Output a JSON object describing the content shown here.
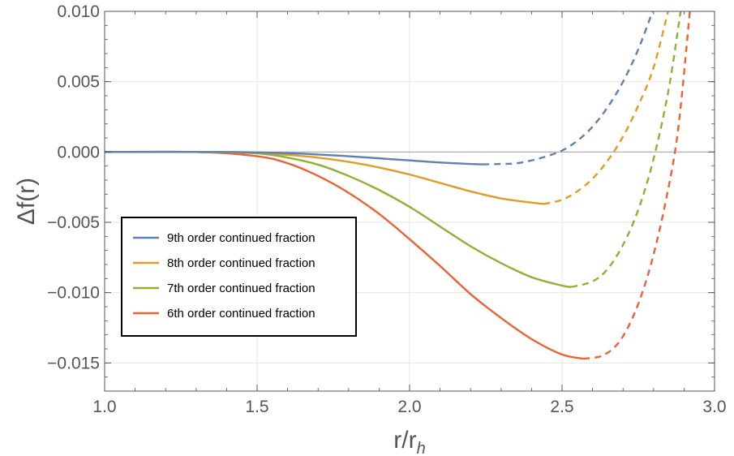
{
  "chart_data": {
    "type": "line",
    "xlabel": "r/r",
    "xlabel_sub": "h",
    "ylabel": "Δf(r)",
    "xlim": [
      1.0,
      3.0
    ],
    "ylim": [
      -0.017,
      0.01
    ],
    "xticks": [
      1.0,
      1.5,
      2.0,
      2.5,
      3.0
    ],
    "xtick_labels": [
      "1.0",
      "1.5",
      "2.0",
      "2.5",
      "3.0"
    ],
    "yticks": [
      0.01,
      0.005,
      0.0,
      -0.005,
      -0.01,
      -0.015
    ],
    "ytick_labels": [
      "0.010",
      "0.005",
      "0.000",
      "−0.005",
      "−0.010",
      "−0.015"
    ],
    "grid": true,
    "legend_position": "lower-left",
    "series": [
      {
        "name": "9th order continued fraction",
        "color": "#5e81b5",
        "solid": {
          "x": [
            1.0,
            1.2,
            1.4,
            1.5,
            1.6,
            1.7,
            1.8,
            1.9,
            2.0,
            2.1,
            2.2,
            2.24
          ],
          "y": [
            0.0,
            0.0,
            0.0,
            -3e-05,
            -8e-05,
            -0.00018,
            -0.0003,
            -0.00045,
            -0.0006,
            -0.00075,
            -0.00085,
            -0.00088
          ]
        },
        "dashed": {
          "x": [
            2.24,
            2.3,
            2.35,
            2.4,
            2.45,
            2.5,
            2.55,
            2.6,
            2.65,
            2.7,
            2.75,
            2.8
          ],
          "y": [
            -0.00088,
            -0.00085,
            -0.0008,
            -0.0006,
            -0.0003,
            0.0001,
            0.0008,
            0.0018,
            0.0032,
            0.005,
            0.0073,
            0.0102
          ]
        }
      },
      {
        "name": "8th order continued fraction",
        "color": "#e19c24",
        "solid": {
          "x": [
            1.0,
            1.3,
            1.5,
            1.6,
            1.7,
            1.8,
            1.9,
            2.0,
            2.1,
            2.2,
            2.3,
            2.4,
            2.44
          ],
          "y": [
            0.0,
            0.0,
            -5e-05,
            -0.0002,
            -0.0004,
            -0.0007,
            -0.0011,
            -0.0016,
            -0.0022,
            -0.0028,
            -0.0033,
            -0.0036,
            -0.0037
          ]
        },
        "dashed": {
          "x": [
            2.44,
            2.5,
            2.55,
            2.6,
            2.65,
            2.7,
            2.75,
            2.8,
            2.85
          ],
          "y": [
            -0.0037,
            -0.0034,
            -0.0028,
            -0.0019,
            -0.0006,
            0.0011,
            0.0033,
            0.006,
            0.0102
          ]
        }
      },
      {
        "name": "7th order continued fraction",
        "color": "#8fb032",
        "solid": {
          "x": [
            1.0,
            1.3,
            1.5,
            1.6,
            1.7,
            1.8,
            1.9,
            2.0,
            2.1,
            2.2,
            2.3,
            2.4,
            2.5,
            2.53
          ],
          "y": [
            0.0,
            0.0,
            -0.0001,
            -0.0004,
            -0.0009,
            -0.0017,
            -0.0027,
            -0.0039,
            -0.0053,
            -0.0067,
            -0.0079,
            -0.0089,
            -0.0095,
            -0.0096
          ]
        },
        "dashed": {
          "x": [
            2.53,
            2.6,
            2.65,
            2.7,
            2.75,
            2.8,
            2.85,
            2.89
          ],
          "y": [
            -0.0096,
            -0.0092,
            -0.0083,
            -0.0066,
            -0.0041,
            -0.0005,
            0.0045,
            0.0102
          ]
        }
      },
      {
        "name": "6th order continued fraction",
        "color": "#eb6235",
        "solid": {
          "x": [
            1.0,
            1.3,
            1.5,
            1.6,
            1.7,
            1.8,
            1.9,
            2.0,
            2.1,
            2.2,
            2.3,
            2.4,
            2.5,
            2.57
          ],
          "y": [
            0.0,
            0.0,
            -0.0003,
            -0.0008,
            -0.0017,
            -0.0029,
            -0.0044,
            -0.0062,
            -0.0081,
            -0.0101,
            -0.0118,
            -0.0133,
            -0.0144,
            -0.0147
          ]
        },
        "dashed": {
          "x": [
            2.57,
            2.63,
            2.68,
            2.72,
            2.76,
            2.8,
            2.84,
            2.88,
            2.92
          ],
          "y": [
            -0.0147,
            -0.0145,
            -0.0137,
            -0.0123,
            -0.0102,
            -0.0073,
            -0.0035,
            0.0015,
            0.0102
          ]
        }
      }
    ]
  }
}
